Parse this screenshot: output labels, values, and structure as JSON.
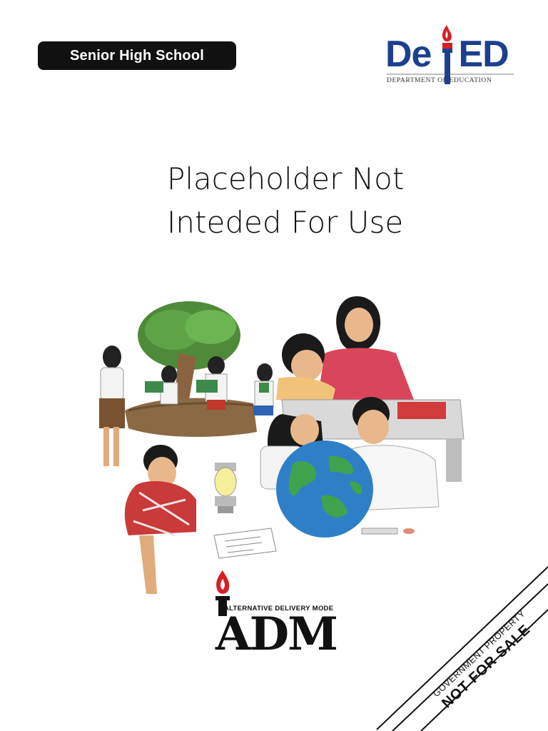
{
  "header": {
    "level_label": "Senior High School"
  },
  "logo": {
    "deped_text_part1": "De",
    "deped_text_part2": "ED",
    "deped_subtitle": "DEPARTMENT OF EDUCATION"
  },
  "title": {
    "line1": "Placeholder Not",
    "line2": "Inteded For Use"
  },
  "adm": {
    "subtitle": "ALTERNATIVE DELIVERY MODE",
    "word": "ADM"
  },
  "corner": {
    "line1": "GOVERNMENT PROPERTY",
    "line2": "NOT FOR SALE"
  },
  "colors": {
    "deped_blue": "#1c3f8f",
    "deped_red": "#d81f26",
    "pill_bg": "#111111"
  }
}
